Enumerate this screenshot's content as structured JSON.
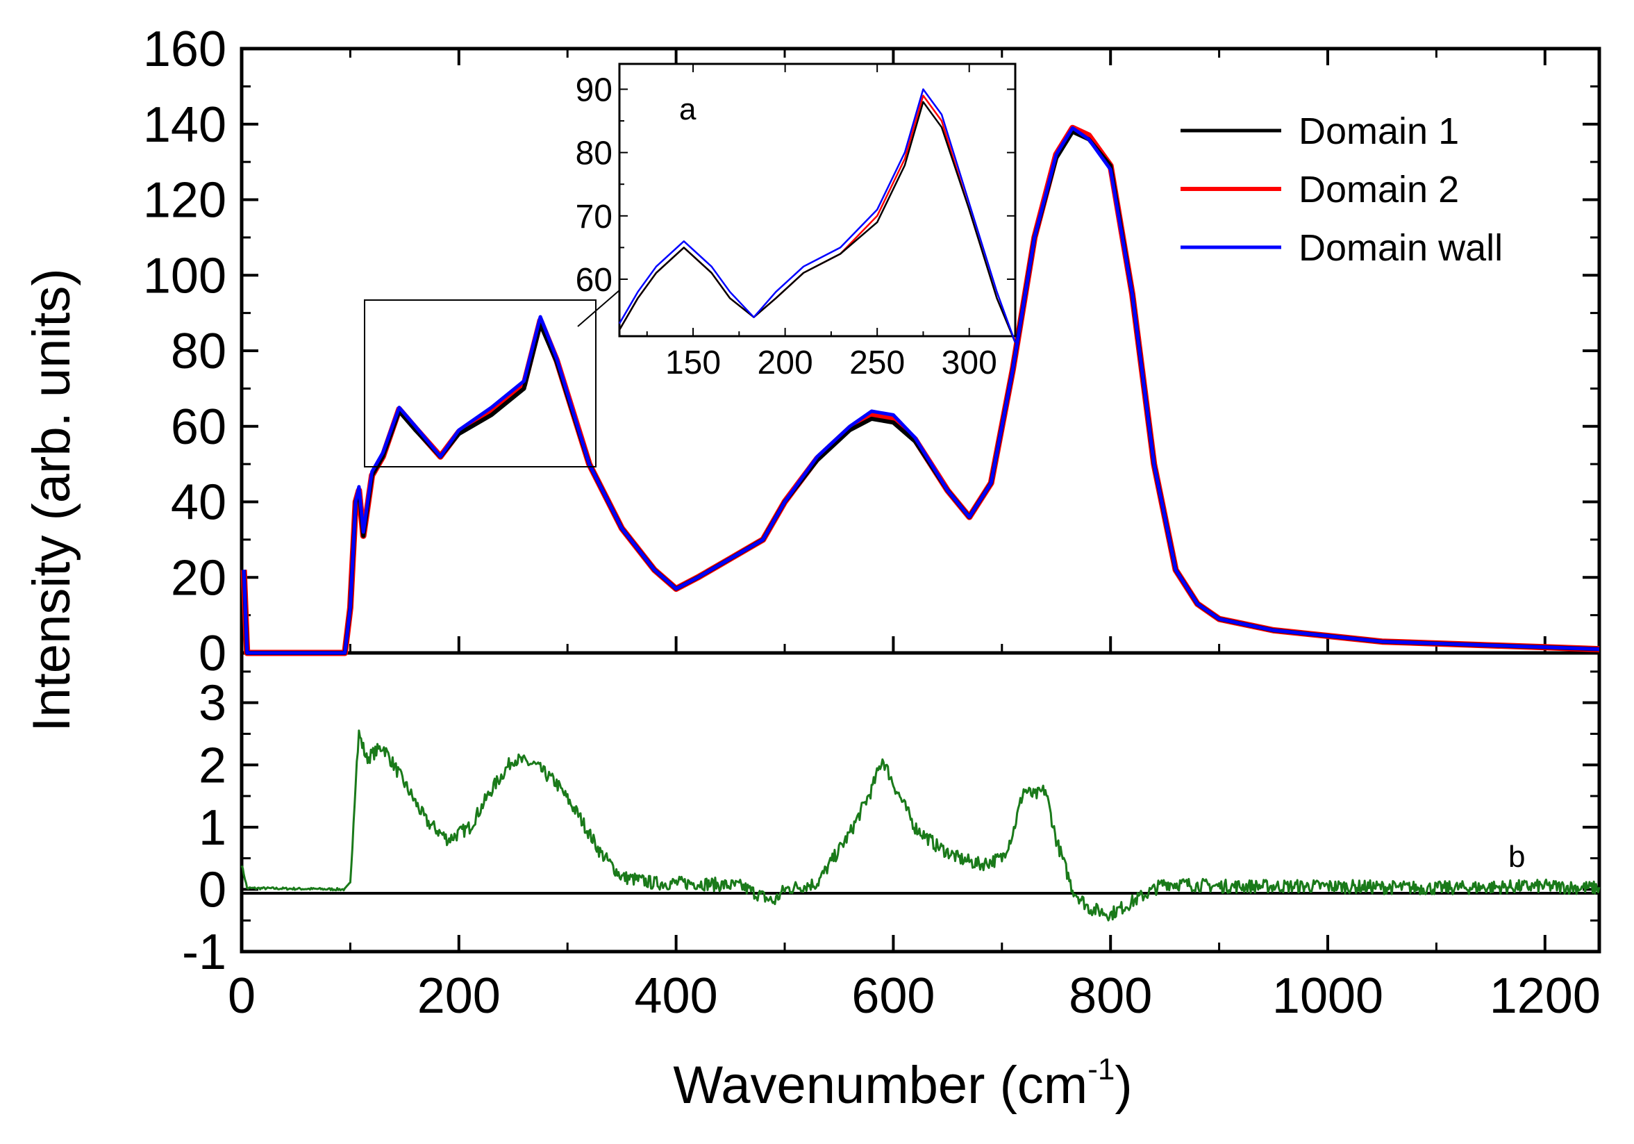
{
  "chart_data": [
    {
      "panel": "a",
      "type": "line",
      "xlabel": "Wavenumber (cm-1)",
      "xlabel_base": "Wavenumber (cm",
      "xlabel_sup": "-1",
      "xlabel_close": ")",
      "ylabel": "Intensity (arb. units)",
      "xlim": [
        0,
        1250
      ],
      "ylim": [
        0,
        160
      ],
      "x_ticks": [
        "0",
        "200",
        "400",
        "600",
        "800",
        "1000",
        "1200"
      ],
      "y_ticks": [
        "0",
        "20",
        "40",
        "60",
        "80",
        "100",
        "120",
        "140",
        "160"
      ],
      "legend_position": "top-right",
      "series": [
        {
          "name": "Domain 1",
          "color": "#000000"
        },
        {
          "name": "Domain 2",
          "color": "#ff0000"
        },
        {
          "name": "Domain wall",
          "color": "#0000ff"
        }
      ],
      "x": [
        2,
        5,
        95,
        100,
        105,
        108,
        112,
        120,
        130,
        145,
        160,
        183,
        200,
        230,
        260,
        275,
        290,
        320,
        350,
        380,
        400,
        420,
        450,
        480,
        500,
        530,
        560,
        580,
        600,
        620,
        650,
        670,
        690,
        710,
        730,
        750,
        765,
        780,
        800,
        820,
        840,
        860,
        880,
        900,
        950,
        1000,
        1050,
        1100,
        1150,
        1200,
        1250
      ],
      "y_domain_wall": [
        22,
        0,
        0,
        12,
        40,
        44,
        32,
        48,
        53,
        65,
        60,
        52,
        59,
        65,
        72,
        89,
        78,
        50,
        33,
        22,
        17,
        20,
        25,
        30,
        40,
        52,
        60,
        64,
        63,
        57,
        43,
        36,
        45,
        75,
        110,
        132,
        139,
        136,
        128,
        95,
        50,
        22,
        13,
        9,
        6,
        4.5,
        3,
        2.5,
        2,
        1.5,
        1
      ],
      "y_domain_1": [
        22,
        0,
        0,
        12,
        40,
        43,
        31,
        47,
        52,
        64,
        59,
        52,
        58,
        63,
        70,
        87,
        77,
        50,
        33,
        22,
        17,
        20,
        25,
        30,
        40,
        51,
        59,
        62,
        61,
        56,
        43,
        36,
        45,
        75,
        110,
        131,
        138,
        136,
        129,
        95,
        50,
        22,
        13,
        9,
        6,
        4.5,
        3,
        2.5,
        2,
        1.5,
        1
      ],
      "y_domain_2": [
        22,
        0,
        0,
        12,
        40,
        43,
        31,
        47,
        52,
        64.5,
        59.5,
        52,
        58.5,
        64,
        71,
        88,
        77.5,
        50,
        33,
        22,
        17,
        20,
        25,
        30,
        40,
        51.5,
        59.5,
        63,
        62,
        56.5,
        43,
        36,
        45,
        75,
        110,
        132,
        139,
        137,
        129,
        95,
        50,
        22,
        13,
        9,
        6,
        4.5,
        3,
        2.5,
        2,
        1.5,
        1
      ]
    },
    {
      "panel": "a-inset",
      "type": "line",
      "label": "a",
      "xlim": [
        110,
        325
      ],
      "ylim": [
        51,
        94
      ],
      "x_ticks": [
        "150",
        "200",
        "250",
        "300"
      ],
      "y_ticks": [
        "60",
        "70",
        "80",
        "90"
      ],
      "x": [
        110,
        120,
        130,
        145,
        160,
        170,
        183,
        195,
        210,
        230,
        250,
        265,
        275,
        285,
        300,
        315,
        325
      ],
      "y_domain_wall": [
        53,
        58,
        62,
        66,
        62,
        58,
        54,
        58,
        62,
        65,
        71,
        80,
        90,
        86,
        72,
        58,
        50
      ],
      "y_domain_1": [
        52,
        57,
        61,
        65,
        61,
        57,
        54,
        57,
        61,
        64,
        69,
        78,
        88,
        84,
        71,
        57,
        50
      ],
      "y_domain_2": [
        52,
        57,
        61,
        65,
        61,
        57,
        54,
        57,
        61,
        64,
        70,
        79,
        89,
        85,
        71,
        57,
        50
      ]
    },
    {
      "panel": "b",
      "type": "line",
      "label": "b",
      "xlim": [
        0,
        1250
      ],
      "ylim": [
        -1,
        3.8
      ],
      "y_ticks": [
        "-1",
        "0",
        "1",
        "2",
        "3"
      ],
      "series": [
        {
          "name": "",
          "color": "#1a7a1a"
        }
      ],
      "x": [
        0,
        5,
        95,
        100,
        105,
        108,
        115,
        130,
        150,
        170,
        190,
        210,
        230,
        250,
        270,
        290,
        310,
        330,
        350,
        380,
        420,
        460,
        490,
        500,
        530,
        560,
        580,
        590,
        600,
        620,
        640,
        660,
        680,
        700,
        710,
        720,
        730,
        740,
        750,
        765,
        780,
        800,
        820,
        850,
        900,
        1000,
        1100,
        1200,
        1250
      ],
      "y": [
        0.4,
        0.02,
        0.0,
        0.1,
        1.8,
        2.5,
        2.1,
        2.3,
        1.7,
        1.1,
        0.8,
        1.0,
        1.6,
        2.1,
        2.0,
        1.7,
        1.2,
        0.6,
        0.2,
        0.1,
        0.1,
        0.05,
        -0.2,
        0.0,
        0.1,
        0.9,
        1.6,
        2.1,
        1.7,
        1.0,
        0.7,
        0.5,
        0.4,
        0.5,
        0.9,
        1.6,
        1.5,
        1.6,
        0.8,
        0.0,
        -0.3,
        -0.4,
        -0.2,
        0.1,
        0.05,
        0.05,
        0.02,
        0.05,
        0.02
      ]
    }
  ]
}
